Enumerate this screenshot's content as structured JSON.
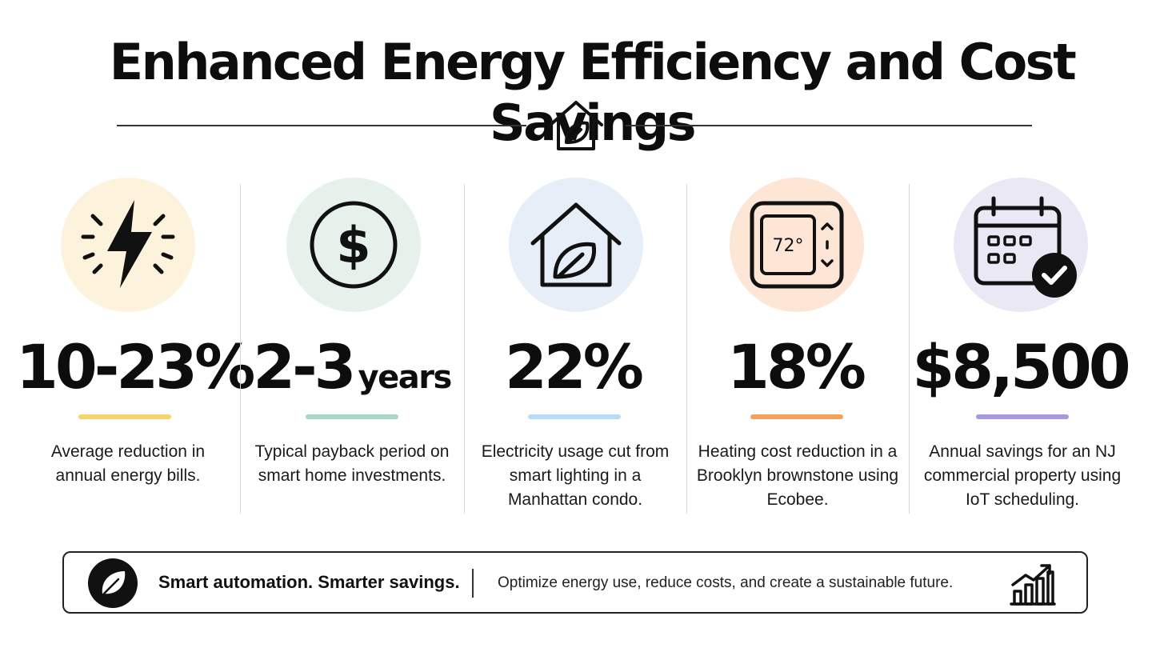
{
  "title": "Enhanced Energy Efficiency and Cost Savings",
  "stats": [
    {
      "icon": "lightning-icon",
      "value": "10-23%",
      "unit": "",
      "accent": "#f7d46b",
      "circle": "#fdf3dc",
      "description": "Average reduction in annual energy bills."
    },
    {
      "icon": "dollar-icon",
      "value": "2-3",
      "unit": "years",
      "accent": "#a9d8c8",
      "circle": "#e6f1ec",
      "description": "Typical payback period on smart home investments."
    },
    {
      "icon": "house-leaf-icon",
      "value": "22%",
      "unit": "",
      "accent": "#b9dbf5",
      "circle": "#e6eef8",
      "description": "Electricity usage cut from smart lighting in a Manhattan condo."
    },
    {
      "icon": "thermostat-icon",
      "value": "18%",
      "unit": "",
      "accent": "#f7a25c",
      "circle": "#fde6d6",
      "thermostat_reading": "72°",
      "description": "Heating cost reduction in a Brooklyn brownstone using Ecobee."
    },
    {
      "icon": "calendar-check-icon",
      "value": "$8,500",
      "unit": "",
      "accent": "#a898e2",
      "circle": "#ebe8f5",
      "description": "Annual savings for an NJ commercial property using IoT scheduling."
    }
  ],
  "footer": {
    "icon": "leaf-icon",
    "tagline": "Smart automation. Smarter savings.",
    "text": "Optimize energy use, reduce costs, and create a sustainable future.",
    "chart_icon": "growth-chart-icon"
  }
}
